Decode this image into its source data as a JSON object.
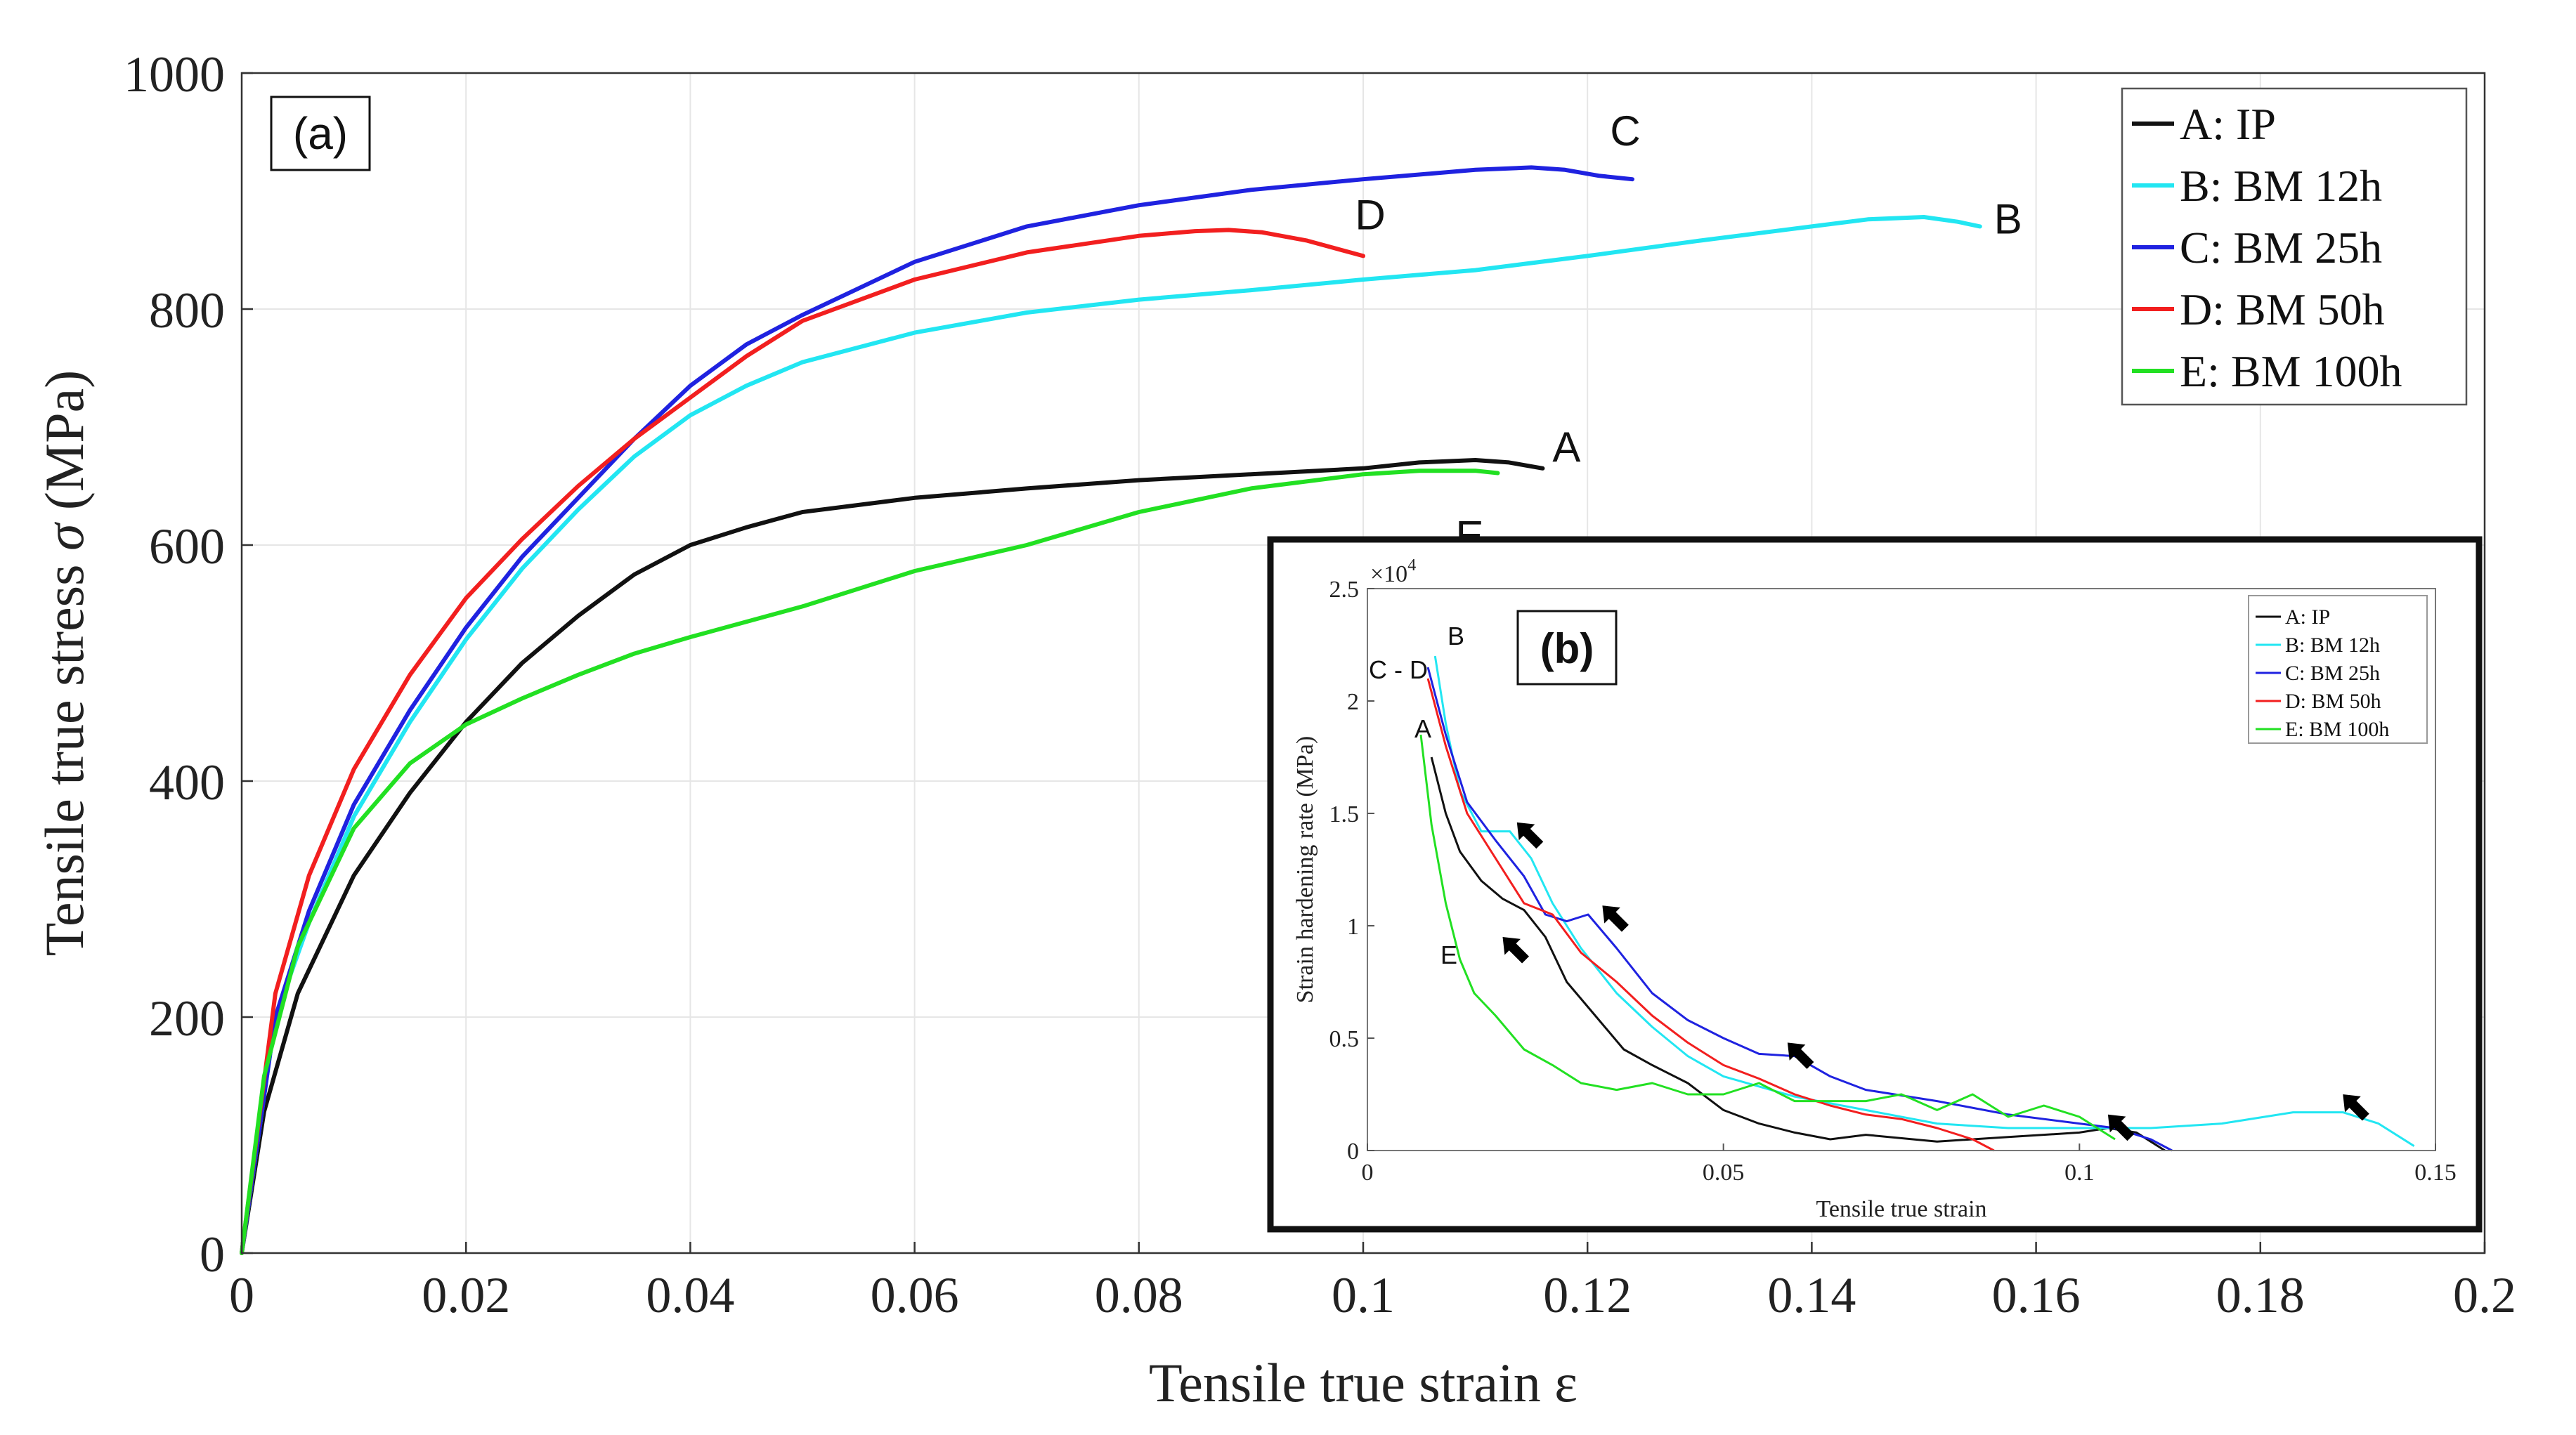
{
  "chart_data": [
    {
      "panel": "(a)",
      "type": "line",
      "xlabel": "Tensile true strain ε",
      "ylabel_prefix": "Tensile true stress ",
      "ylabel_symbol": "σ",
      "ylabel_suffix": " (MPa)",
      "xlim": [
        0,
        0.2
      ],
      "ylim": [
        0,
        1000
      ],
      "xticks": [
        0,
        0.02,
        0.04,
        0.06,
        0.08,
        0.1,
        0.12,
        0.14,
        0.16,
        0.18,
        0.2
      ],
      "xtick_labels": [
        "0",
        "0.02",
        "0.04",
        "0.06",
        "0.08",
        "0.1",
        "0.12",
        "0.14",
        "0.16",
        "0.18",
        "0.2"
      ],
      "yticks": [
        0,
        200,
        400,
        600,
        800,
        1000
      ],
      "ytick_labels": [
        "0",
        "200",
        "400",
        "600",
        "800",
        "1000"
      ],
      "grid": true,
      "legend_position": "top-right",
      "series": [
        {
          "key": "A",
          "name": "A: IP",
          "color": "#111111",
          "label": "A",
          "points": [
            [
              0,
              0
            ],
            [
              0.002,
              120
            ],
            [
              0.005,
              220
            ],
            [
              0.01,
              320
            ],
            [
              0.015,
              390
            ],
            [
              0.02,
              450
            ],
            [
              0.025,
              500
            ],
            [
              0.03,
              540
            ],
            [
              0.035,
              575
            ],
            [
              0.04,
              600
            ],
            [
              0.045,
              615
            ],
            [
              0.05,
              628
            ],
            [
              0.06,
              640
            ],
            [
              0.07,
              648
            ],
            [
              0.08,
              655
            ],
            [
              0.09,
              660
            ],
            [
              0.1,
              665
            ],
            [
              0.105,
              670
            ],
            [
              0.11,
              672
            ],
            [
              0.113,
              670
            ],
            [
              0.116,
              665
            ]
          ]
        },
        {
          "key": "B",
          "name": "B: BM 12h",
          "color": "#22e6f2",
          "label": "B",
          "points": [
            [
              0,
              0
            ],
            [
              0.003,
              200
            ],
            [
              0.006,
              280
            ],
            [
              0.01,
              370
            ],
            [
              0.015,
              450
            ],
            [
              0.02,
              520
            ],
            [
              0.025,
              580
            ],
            [
              0.03,
              630
            ],
            [
              0.035,
              675
            ],
            [
              0.04,
              710
            ],
            [
              0.045,
              735
            ],
            [
              0.05,
              755
            ],
            [
              0.06,
              780
            ],
            [
              0.07,
              797
            ],
            [
              0.08,
              808
            ],
            [
              0.09,
              816
            ],
            [
              0.1,
              825
            ],
            [
              0.11,
              833
            ],
            [
              0.12,
              845
            ],
            [
              0.13,
              858
            ],
            [
              0.14,
              870
            ],
            [
              0.145,
              876
            ],
            [
              0.15,
              878
            ],
            [
              0.153,
              874
            ],
            [
              0.155,
              870
            ]
          ]
        },
        {
          "key": "C",
          "name": "C: BM 25h",
          "color": "#1f22e0",
          "label": "C",
          "points": [
            [
              0,
              0
            ],
            [
              0.003,
              200
            ],
            [
              0.006,
              290
            ],
            [
              0.01,
              380
            ],
            [
              0.015,
              460
            ],
            [
              0.02,
              530
            ],
            [
              0.025,
              590
            ],
            [
              0.03,
              640
            ],
            [
              0.035,
              690
            ],
            [
              0.04,
              735
            ],
            [
              0.045,
              770
            ],
            [
              0.05,
              795
            ],
            [
              0.06,
              840
            ],
            [
              0.07,
              870
            ],
            [
              0.08,
              888
            ],
            [
              0.09,
              901
            ],
            [
              0.1,
              910
            ],
            [
              0.11,
              918
            ],
            [
              0.115,
              920
            ],
            [
              0.118,
              918
            ],
            [
              0.121,
              913
            ],
            [
              0.124,
              910
            ]
          ]
        },
        {
          "key": "D",
          "name": "D: BM 50h",
          "color": "#f21f1f",
          "label": "D",
          "points": [
            [
              0,
              0
            ],
            [
              0.003,
              220
            ],
            [
              0.006,
              320
            ],
            [
              0.01,
              410
            ],
            [
              0.015,
              490
            ],
            [
              0.02,
              555
            ],
            [
              0.025,
              605
            ],
            [
              0.03,
              650
            ],
            [
              0.035,
              690
            ],
            [
              0.04,
              725
            ],
            [
              0.045,
              760
            ],
            [
              0.05,
              790
            ],
            [
              0.06,
              825
            ],
            [
              0.07,
              848
            ],
            [
              0.08,
              862
            ],
            [
              0.085,
              866
            ],
            [
              0.088,
              867
            ],
            [
              0.091,
              865
            ],
            [
              0.095,
              858
            ],
            [
              0.1,
              845
            ]
          ]
        },
        {
          "key": "E",
          "name": "E: BM 100h",
          "color": "#22e022",
          "label": "E",
          "points": [
            [
              0,
              0
            ],
            [
              0.002,
              150
            ],
            [
              0.005,
              260
            ],
            [
              0.01,
              360
            ],
            [
              0.015,
              415
            ],
            [
              0.02,
              448
            ],
            [
              0.025,
              470
            ],
            [
              0.03,
              490
            ],
            [
              0.035,
              508
            ],
            [
              0.04,
              522
            ],
            [
              0.05,
              548
            ],
            [
              0.06,
              578
            ],
            [
              0.07,
              600
            ],
            [
              0.08,
              628
            ],
            [
              0.09,
              648
            ],
            [
              0.1,
              660
            ],
            [
              0.105,
              663
            ],
            [
              0.11,
              663
            ],
            [
              0.112,
              661
            ]
          ]
        }
      ]
    },
    {
      "panel": "(b)",
      "type": "line",
      "xlabel": "Tensile true strain",
      "ylabel": "Strain hardening rate (MPa)",
      "y_multiplier": "×10",
      "y_multiplier_exp": "4",
      "xlim": [
        0,
        0.15
      ],
      "ylim": [
        0,
        2.5
      ],
      "xticks": [
        0,
        0.05,
        0.1,
        0.15
      ],
      "xtick_labels": [
        "0",
        "0.05",
        "0.1",
        "0.15"
      ],
      "yticks": [
        0,
        0.5,
        1,
        1.5,
        2,
        2.5
      ],
      "ytick_labels": [
        "0",
        "0.5",
        "1",
        "1.5",
        "2",
        "2.5"
      ],
      "legend_position": "top-right",
      "annotations": [
        "A",
        "B",
        "C - D",
        "E"
      ],
      "arrow_marks": [
        [
          0.021,
          1.46
        ],
        [
          0.033,
          1.09
        ],
        [
          0.059,
          0.48
        ],
        [
          0.104,
          0.16
        ],
        [
          0.137,
          0.25
        ],
        [
          0.019,
          0.95
        ]
      ],
      "series": [
        {
          "key": "A",
          "name": "A: IP",
          "color": "#111111",
          "points": [
            [
              0.009,
              1.75
            ],
            [
              0.011,
              1.5
            ],
            [
              0.013,
              1.33
            ],
            [
              0.016,
              1.2
            ],
            [
              0.019,
              1.12
            ],
            [
              0.022,
              1.07
            ],
            [
              0.025,
              0.95
            ],
            [
              0.028,
              0.75
            ],
            [
              0.032,
              0.6
            ],
            [
              0.036,
              0.45
            ],
            [
              0.04,
              0.38
            ],
            [
              0.045,
              0.3
            ],
            [
              0.05,
              0.18
            ],
            [
              0.055,
              0.12
            ],
            [
              0.06,
              0.08
            ],
            [
              0.065,
              0.05
            ],
            [
              0.07,
              0.07
            ],
            [
              0.08,
              0.04
            ],
            [
              0.09,
              0.06
            ],
            [
              0.1,
              0.08
            ],
            [
              0.104,
              0.1
            ],
            [
              0.108,
              0.08
            ],
            [
              0.112,
              0.0
            ]
          ]
        },
        {
          "key": "B",
          "name": "B: BM 12h",
          "color": "#22e6f2",
          "points": [
            [
              0.0095,
              2.2
            ],
            [
              0.011,
              1.9
            ],
            [
              0.013,
              1.6
            ],
            [
              0.016,
              1.42
            ],
            [
              0.02,
              1.42
            ],
            [
              0.023,
              1.3
            ],
            [
              0.026,
              1.1
            ],
            [
              0.03,
              0.9
            ],
            [
              0.035,
              0.7
            ],
            [
              0.04,
              0.55
            ],
            [
              0.045,
              0.42
            ],
            [
              0.05,
              0.33
            ],
            [
              0.06,
              0.24
            ],
            [
              0.07,
              0.18
            ],
            [
              0.08,
              0.12
            ],
            [
              0.09,
              0.1
            ],
            [
              0.1,
              0.1
            ],
            [
              0.11,
              0.1
            ],
            [
              0.12,
              0.12
            ],
            [
              0.13,
              0.17
            ],
            [
              0.137,
              0.17
            ],
            [
              0.142,
              0.12
            ],
            [
              0.147,
              0.02
            ]
          ]
        },
        {
          "key": "C",
          "name": "C: BM 25h",
          "color": "#1f22e0",
          "points": [
            [
              0.0085,
              2.15
            ],
            [
              0.011,
              1.85
            ],
            [
              0.014,
              1.55
            ],
            [
              0.018,
              1.38
            ],
            [
              0.022,
              1.22
            ],
            [
              0.025,
              1.05
            ],
            [
              0.028,
              1.02
            ],
            [
              0.031,
              1.05
            ],
            [
              0.035,
              0.9
            ],
            [
              0.04,
              0.7
            ],
            [
              0.045,
              0.58
            ],
            [
              0.05,
              0.5
            ],
            [
              0.055,
              0.43
            ],
            [
              0.06,
              0.42
            ],
            [
              0.065,
              0.33
            ],
            [
              0.07,
              0.27
            ],
            [
              0.08,
              0.22
            ],
            [
              0.09,
              0.16
            ],
            [
              0.1,
              0.12
            ],
            [
              0.105,
              0.1
            ],
            [
              0.11,
              0.05
            ],
            [
              0.113,
              0.0
            ]
          ]
        },
        {
          "key": "D",
          "name": "D: BM 50h",
          "color": "#f21f1f",
          "points": [
            [
              0.0085,
              2.1
            ],
            [
              0.011,
              1.8
            ],
            [
              0.014,
              1.5
            ],
            [
              0.018,
              1.3
            ],
            [
              0.022,
              1.1
            ],
            [
              0.026,
              1.05
            ],
            [
              0.03,
              0.88
            ],
            [
              0.035,
              0.75
            ],
            [
              0.04,
              0.6
            ],
            [
              0.045,
              0.48
            ],
            [
              0.05,
              0.38
            ],
            [
              0.055,
              0.32
            ],
            [
              0.06,
              0.25
            ],
            [
              0.065,
              0.2
            ],
            [
              0.07,
              0.16
            ],
            [
              0.075,
              0.14
            ],
            [
              0.08,
              0.1
            ],
            [
              0.085,
              0.05
            ],
            [
              0.088,
              0.0
            ]
          ]
        },
        {
          "key": "E",
          "name": "E: BM 100h",
          "color": "#22e022",
          "points": [
            [
              0.0075,
              1.85
            ],
            [
              0.009,
              1.45
            ],
            [
              0.011,
              1.1
            ],
            [
              0.013,
              0.85
            ],
            [
              0.015,
              0.7
            ],
            [
              0.018,
              0.6
            ],
            [
              0.022,
              0.45
            ],
            [
              0.026,
              0.38
            ],
            [
              0.03,
              0.3
            ],
            [
              0.035,
              0.27
            ],
            [
              0.04,
              0.3
            ],
            [
              0.045,
              0.25
            ],
            [
              0.05,
              0.25
            ],
            [
              0.055,
              0.3
            ],
            [
              0.06,
              0.22
            ],
            [
              0.07,
              0.22
            ],
            [
              0.075,
              0.25
            ],
            [
              0.08,
              0.18
            ],
            [
              0.085,
              0.25
            ],
            [
              0.09,
              0.15
            ],
            [
              0.095,
              0.2
            ],
            [
              0.1,
              0.15
            ],
            [
              0.105,
              0.05
            ]
          ]
        }
      ]
    }
  ]
}
